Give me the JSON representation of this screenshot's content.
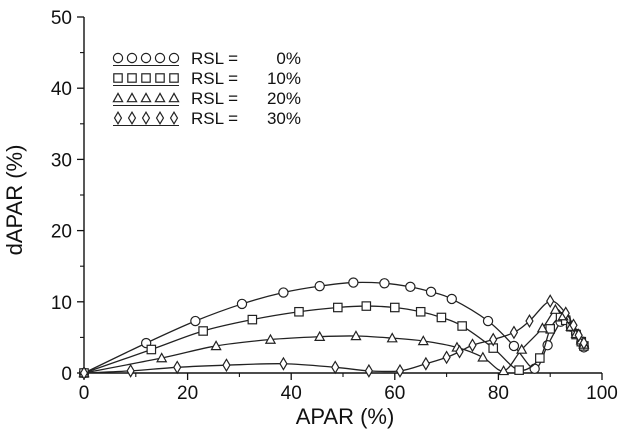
{
  "chart_data": {
    "type": "line",
    "xlabel": "APAR (%)",
    "ylabel": "dAPAR (%)",
    "xlim": [
      0,
      100
    ],
    "ylim": [
      0,
      50
    ],
    "xticks": [
      0,
      20,
      40,
      60,
      80,
      100
    ],
    "yticks": [
      0,
      10,
      20,
      30,
      40,
      50
    ],
    "x_tick_labels": [
      "0",
      "20",
      "40",
      "60",
      "80",
      "100"
    ],
    "y_tick_labels": [
      "0",
      "10",
      "20",
      "30",
      "40",
      "50"
    ],
    "legend_position": "top-left",
    "series": [
      {
        "name": "RSL = 0%",
        "marker": "circle",
        "points": [
          [
            0,
            0
          ],
          [
            12,
            4.2
          ],
          [
            21.5,
            7.3
          ],
          [
            30.5,
            9.7
          ],
          [
            38.5,
            11.3
          ],
          [
            45.5,
            12.2
          ],
          [
            52,
            12.7
          ],
          [
            58,
            12.6
          ],
          [
            63,
            12.1
          ],
          [
            67,
            11.4
          ],
          [
            71,
            10.4
          ],
          [
            78,
            7.3
          ],
          [
            83,
            3.8
          ],
          [
            87,
            0.6
          ],
          [
            89.5,
            3.9
          ],
          [
            92,
            7.2
          ],
          [
            93,
            7.6
          ],
          [
            94,
            6.5
          ],
          [
            95,
            5.5
          ],
          [
            96,
            4.3
          ],
          [
            96.5,
            3.6
          ]
        ]
      },
      {
        "name": "RSL = 10%",
        "marker": "square",
        "points": [
          [
            0,
            0
          ],
          [
            13,
            3.3
          ],
          [
            23,
            5.9
          ],
          [
            32.5,
            7.5
          ],
          [
            41.5,
            8.6
          ],
          [
            49,
            9.2
          ],
          [
            54.5,
            9.4
          ],
          [
            60,
            9.2
          ],
          [
            65,
            8.6
          ],
          [
            69,
            7.8
          ],
          [
            73,
            6.6
          ],
          [
            79,
            3.5
          ],
          [
            84,
            0.4
          ],
          [
            88,
            2.1
          ],
          [
            90,
            6.2
          ],
          [
            92,
            7.9
          ],
          [
            93,
            7.4
          ],
          [
            94,
            6.5
          ],
          [
            95,
            5.4
          ],
          [
            96,
            4.4
          ],
          [
            96.5,
            3.8
          ]
        ]
      },
      {
        "name": "RSL = 20%",
        "marker": "triangle",
        "points": [
          [
            0,
            0
          ],
          [
            15,
            2.1
          ],
          [
            25.5,
            3.8
          ],
          [
            36,
            4.7
          ],
          [
            45.5,
            5.1
          ],
          [
            52.5,
            5.2
          ],
          [
            59.5,
            4.9
          ],
          [
            65.5,
            4.5
          ],
          [
            72,
            3.6
          ],
          [
            77,
            2.2
          ],
          [
            81,
            0.3
          ],
          [
            84.5,
            3.3
          ],
          [
            88.5,
            6.3
          ],
          [
            91,
            8.9
          ],
          [
            92.5,
            8.0
          ],
          [
            94,
            6.5
          ],
          [
            95,
            5.5
          ],
          [
            96,
            4.6
          ],
          [
            96.5,
            4.0
          ]
        ]
      },
      {
        "name": "RSL = 30%",
        "marker": "diamond",
        "points": [
          [
            0,
            0
          ],
          [
            9,
            0.3
          ],
          [
            18,
            0.8
          ],
          [
            27.5,
            1.1
          ],
          [
            38.5,
            1.3
          ],
          [
            48.5,
            0.8
          ],
          [
            55,
            0.3
          ],
          [
            61,
            0.3
          ],
          [
            66,
            1.3
          ],
          [
            70,
            2.2
          ],
          [
            72.5,
            3.0
          ],
          [
            75,
            3.9
          ],
          [
            79,
            4.7
          ],
          [
            83,
            5.7
          ],
          [
            86,
            7.3
          ],
          [
            90,
            10.1
          ],
          [
            93,
            8.4
          ],
          [
            94.5,
            6.7
          ],
          [
            95.5,
            5.3
          ],
          [
            96.5,
            4.2
          ]
        ]
      }
    ]
  },
  "legend": {
    "rows": [
      {
        "prefix": "RSL  =",
        "value": "0%"
      },
      {
        "prefix": "RSL  =",
        "value": "10%"
      },
      {
        "prefix": "RSL  =",
        "value": "20%"
      },
      {
        "prefix": "RSL  =",
        "value": "30%"
      }
    ]
  },
  "style": {
    "line_color": "#222222",
    "marker_stroke": "#222222",
    "marker_fill": "#ffffff",
    "axis_color": "#111111"
  }
}
